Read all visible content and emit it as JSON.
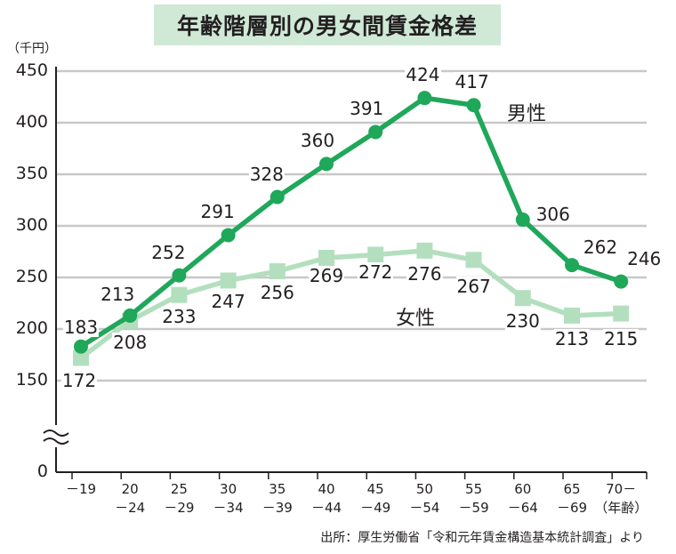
{
  "title": "年齢階層別の男女間賃金格差",
  "unit_label": "（千円）",
  "source": "出所：厚生労働省「令和元年賃金構造基本統計調査」より",
  "colors": {
    "male": "#1fa75a",
    "female": "#b3dfbf",
    "grid": "#c8c8c8",
    "axis": "#231f20",
    "title_bg": "#cfe9d6"
  },
  "chart_data": {
    "type": "line",
    "title": "年齢階層別の男女間賃金格差",
    "ylabel": "（千円）",
    "xlabel": "（年齢）",
    "y_ticks": [
      "450",
      "400",
      "350",
      "300",
      "250",
      "200",
      "150",
      "0"
    ],
    "y_axis_break": true,
    "ylim": [
      150,
      450
    ],
    "grid": true,
    "categories": [
      {
        "line1": "－19",
        "line2": ""
      },
      {
        "line1": "20",
        "line2": "－24"
      },
      {
        "line1": "25",
        "line2": "－29"
      },
      {
        "line1": "30",
        "line2": "－34"
      },
      {
        "line1": "35",
        "line2": "－39"
      },
      {
        "line1": "40",
        "line2": "－44"
      },
      {
        "line1": "45",
        "line2": "－49"
      },
      {
        "line1": "50",
        "line2": "－54"
      },
      {
        "line1": "55",
        "line2": "－59"
      },
      {
        "line1": "60",
        "line2": "－64"
      },
      {
        "line1": "65",
        "line2": "－69"
      },
      {
        "line1": "70－",
        "line2": "（年齢）"
      }
    ],
    "series": [
      {
        "name": "男性",
        "values": [
          183,
          213,
          252,
          291,
          328,
          360,
          391,
          424,
          417,
          306,
          262,
          246
        ],
        "labels": [
          "183",
          "213",
          "252",
          "291",
          "328",
          "360",
          "391",
          "424",
          "417",
          "306",
          "262",
          "246"
        ]
      },
      {
        "name": "女性",
        "values": [
          172,
          208,
          233,
          247,
          256,
          269,
          272,
          276,
          267,
          230,
          213,
          215
        ],
        "labels": [
          "172",
          "208",
          "233",
          "247",
          "256",
          "269",
          "272",
          "276",
          "267",
          "230",
          "213",
          "215"
        ]
      }
    ]
  }
}
